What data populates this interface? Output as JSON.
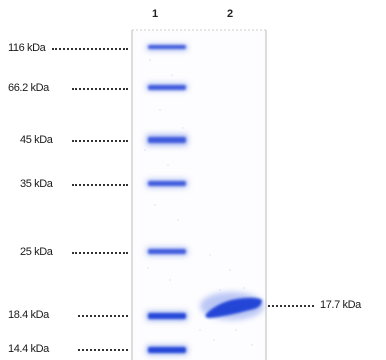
{
  "lanes": [
    "1",
    "2"
  ],
  "markers": [
    {
      "label": "116 kDa"
    },
    {
      "label": "66.2 kDa"
    },
    {
      "label": "45 kDa"
    },
    {
      "label": "35 kDa"
    },
    {
      "label": "25 kDa"
    },
    {
      "label": "18.4 kDa"
    },
    {
      "label": "14.4 kDa"
    }
  ],
  "sample_band": {
    "label": "17.7 kDa",
    "lane": "2"
  },
  "colors": {
    "band": "#1f3fd6",
    "band_light": "#8fa2ee",
    "background": "#ffffff",
    "dots": "#333333"
  }
}
